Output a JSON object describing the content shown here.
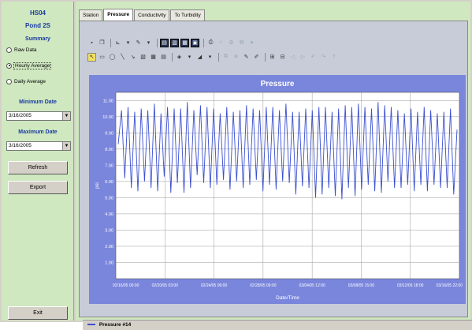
{
  "sidebar": {
    "station": "HS04",
    "location": "Pond 2S",
    "summary_label": "Summary",
    "summary_options": [
      {
        "label": "Raw Data",
        "selected": false
      },
      {
        "label": "Hourly Average",
        "selected": true
      },
      {
        "label": "Daily Average",
        "selected": false
      }
    ],
    "min_date_label": "Minimum Date",
    "min_date_value": "3/16/2005",
    "max_date_label": "Maximum Date",
    "max_date_value": "3/16/2005",
    "refresh_label": "Refresh",
    "export_label": "Export",
    "exit_label": "Exit"
  },
  "tabs": [
    {
      "label": "Station",
      "active": false
    },
    {
      "label": "Pressure",
      "active": true
    },
    {
      "label": "Conductivity",
      "active": false
    },
    {
      "label": "To Turbidity",
      "active": false
    }
  ],
  "chart_data": {
    "type": "line",
    "title": "Pressure",
    "xlabel": "Date/Time",
    "ylabel": "psi",
    "ylim": [
      0,
      11.5
    ],
    "yticks": [
      "1.00",
      "2.00",
      "3.00",
      "4.00",
      "5.00",
      "6.00",
      "7.00",
      "8.00",
      "9.00",
      "10.00",
      "11.00"
    ],
    "xticks": [
      "02/16/05 00:00",
      "02/20/05 03:00",
      "02/24/05 06:00",
      "02/28/05 09:00",
      "03/04/05 12:00",
      "03/08/05 15:00",
      "03/12/05 18:00",
      "03/16/05 22:00"
    ],
    "grid": true,
    "series": [
      {
        "name": "Pressure #14",
        "color": "#3a4fd0",
        "values": [
          8.3,
          10.4,
          6.2,
          10.6,
          5.6,
          10.3,
          5.4,
          10.5,
          6.0,
          10.4,
          5.6,
          10.8,
          5.4,
          10.2,
          6.3,
          10.6,
          5.3,
          10.5,
          5.9,
          10.5,
          5.3,
          10.9,
          5.6,
          10.4,
          6.4,
          10.7,
          5.9,
          10.6,
          5.6,
          10.5,
          5.8,
          10.2,
          6.1,
          10.6,
          5.5,
          10.3,
          6.0,
          10.4,
          5.6,
          10.7,
          5.8,
          10.5,
          6.1,
          10.4,
          5.4,
          10.6,
          5.8,
          10.6,
          5.5,
          10.4,
          6.0,
          10.8,
          5.9,
          10.3,
          5.2,
          10.3,
          5.7,
          10.5,
          5.6,
          10.4,
          5.0,
          10.6,
          5.2,
          10.6,
          5.6,
          10.3,
          5.1,
          10.5,
          4.9,
          10.7,
          5.6,
          10.6,
          5.1,
          10.8,
          5.5,
          10.6,
          5.8,
          10.5,
          5.4,
          10.9,
          5.3,
          10.7,
          6.0,
          10.6,
          5.6,
          10.4,
          5.6,
          10.2,
          5.8,
          10.5,
          5.4,
          10.3,
          5.8,
          10.6,
          5.4,
          10.4,
          5.8,
          10.2,
          5.6,
          10.3,
          5.6,
          10.5,
          5.2,
          9.2
        ]
      }
    ]
  }
}
